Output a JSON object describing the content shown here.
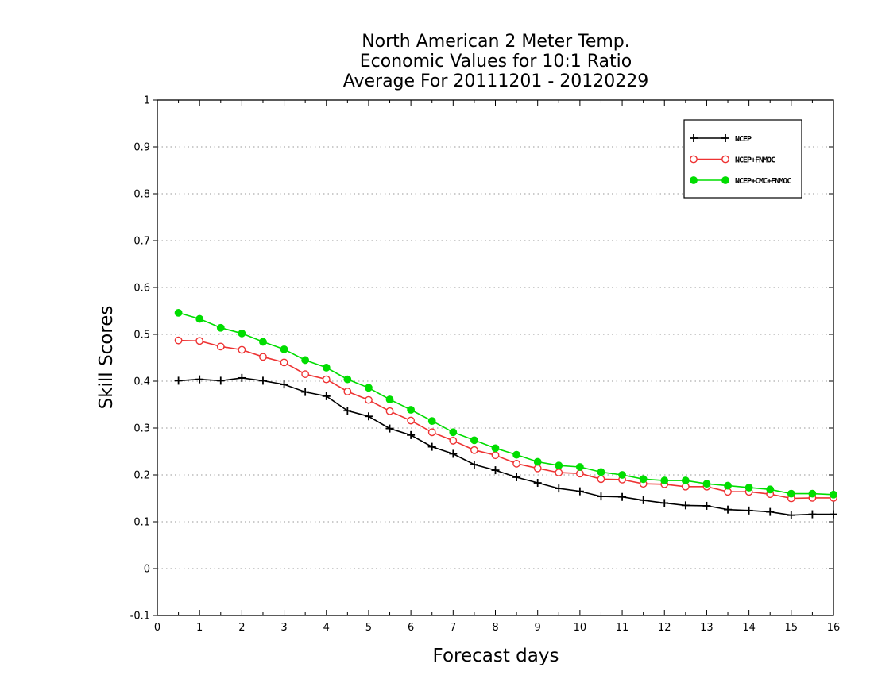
{
  "chart_data": {
    "type": "line",
    "title": [
      "North American 2 Meter Temp.",
      "Economic Values for 10:1 Ratio",
      "Average For 20111201 - 20120229"
    ],
    "xlabel": "Forecast days",
    "ylabel": "Skill Scores",
    "xlim": [
      0,
      16
    ],
    "ylim": [
      -0.1,
      1
    ],
    "xticks": [
      0,
      1,
      2,
      3,
      4,
      5,
      6,
      7,
      8,
      9,
      10,
      11,
      12,
      13,
      14,
      15,
      16
    ],
    "yticks": [
      -0.1,
      0,
      0.1,
      0.2,
      0.3,
      0.4,
      0.5,
      0.6,
      0.7,
      0.8,
      0.9,
      1
    ],
    "ytick_labels": [
      "-0.1",
      "0",
      "0.1",
      "0.2",
      "0.3",
      "0.4",
      "0.5",
      "0.6",
      "0.7",
      "0.8",
      "0.9",
      "1"
    ],
    "grid": "horizontal dotted",
    "legend_position": "top-right",
    "x": [
      0.5,
      1,
      1.5,
      2,
      2.5,
      3,
      3.5,
      4,
      4.5,
      5,
      5.5,
      6,
      6.5,
      7,
      7.5,
      8,
      8.5,
      9,
      9.5,
      10,
      10.5,
      11,
      11.5,
      12,
      12.5,
      13,
      13.5,
      14,
      14.5,
      15,
      15.5,
      16
    ],
    "series": [
      {
        "name": "NCEP",
        "color": "#000000",
        "marker": "plus",
        "values": [
          0.401,
          0.404,
          0.401,
          0.407,
          0.401,
          0.393,
          0.377,
          0.368,
          0.337,
          0.325,
          0.299,
          0.285,
          0.26,
          0.245,
          0.222,
          0.21,
          0.195,
          0.183,
          0.171,
          0.165,
          0.154,
          0.153,
          0.146,
          0.14,
          0.135,
          0.134,
          0.126,
          0.124,
          0.121,
          0.114,
          0.116,
          0.116
        ]
      },
      {
        "name": "NCEP+FNMOC",
        "color": "#ee3333",
        "marker": "open-circle",
        "values": [
          0.487,
          0.486,
          0.474,
          0.467,
          0.452,
          0.44,
          0.415,
          0.404,
          0.378,
          0.36,
          0.336,
          0.316,
          0.291,
          0.273,
          0.253,
          0.242,
          0.224,
          0.214,
          0.205,
          0.203,
          0.191,
          0.19,
          0.181,
          0.18,
          0.175,
          0.175,
          0.164,
          0.164,
          0.159,
          0.15,
          0.151,
          0.151
        ]
      },
      {
        "name": "NCEP+CMC+FNMOC",
        "color": "#00dd00",
        "marker": "filled-circle",
        "values": [
          0.546,
          0.533,
          0.514,
          0.502,
          0.484,
          0.468,
          0.445,
          0.429,
          0.404,
          0.386,
          0.361,
          0.339,
          0.315,
          0.291,
          0.274,
          0.257,
          0.243,
          0.228,
          0.22,
          0.217,
          0.206,
          0.2,
          0.191,
          0.188,
          0.188,
          0.181,
          0.177,
          0.173,
          0.169,
          0.16,
          0.16,
          0.158
        ]
      }
    ]
  }
}
